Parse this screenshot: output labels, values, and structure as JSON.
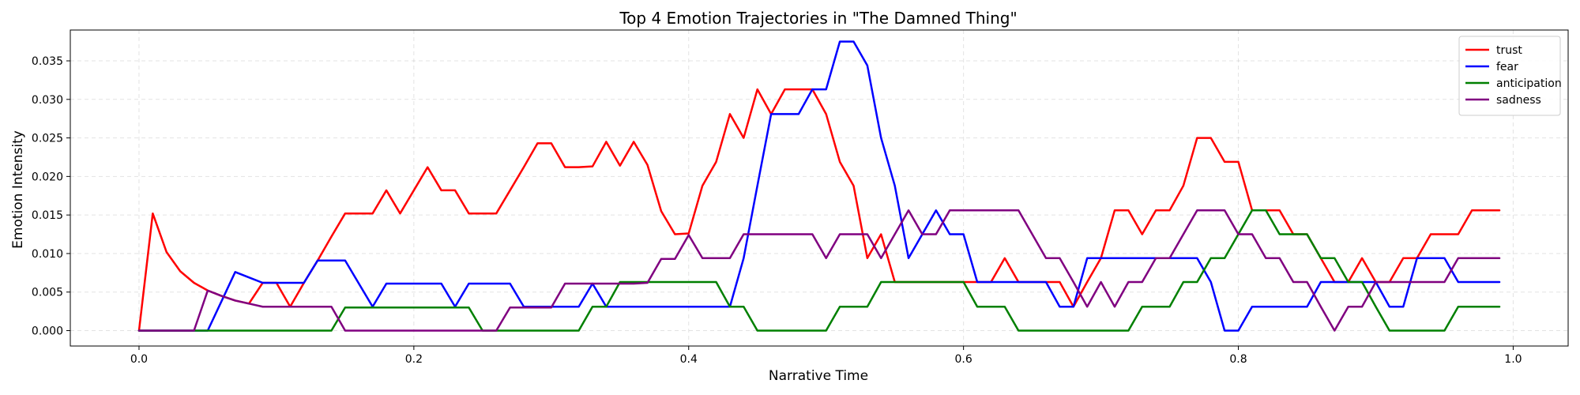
{
  "chart_data": {
    "type": "line",
    "title": "Top 4 Emotion Trajectories in \"The Damned Thing\"",
    "xlabel": "Narrative Time",
    "ylabel": "Emotion Intensity",
    "xlim": [
      -0.05,
      1.04
    ],
    "ylim": [
      -0.002,
      0.039
    ],
    "xticks": [
      0.0,
      0.2,
      0.4,
      0.6,
      0.8,
      1.0
    ],
    "xtick_labels": [
      "0.0",
      "0.2",
      "0.4",
      "0.6",
      "0.8",
      "1.0"
    ],
    "yticks": [
      0.0,
      0.005,
      0.01,
      0.015,
      0.02,
      0.025,
      0.03,
      0.035
    ],
    "ytick_labels": [
      "0.000",
      "0.005",
      "0.010",
      "0.015",
      "0.020",
      "0.025",
      "0.030",
      "0.035"
    ],
    "grid": true,
    "legend_position": "top-right",
    "x": [
      0.0,
      0.01,
      0.02,
      0.03,
      0.04,
      0.05,
      0.06,
      0.07,
      0.08,
      0.09,
      0.1,
      0.11,
      0.12,
      0.13,
      0.14,
      0.15,
      0.16,
      0.17,
      0.18,
      0.19,
      0.2,
      0.21,
      0.22,
      0.23,
      0.24,
      0.25,
      0.26,
      0.27,
      0.28,
      0.29,
      0.3,
      0.31,
      0.32,
      0.33,
      0.34,
      0.35,
      0.36,
      0.37,
      0.38,
      0.39,
      0.4,
      0.41,
      0.42,
      0.43,
      0.44,
      0.45,
      0.46,
      0.47,
      0.48,
      0.49,
      0.5,
      0.51,
      0.52,
      0.53,
      0.54,
      0.55,
      0.56,
      0.57,
      0.58,
      0.59,
      0.6,
      0.61,
      0.62,
      0.63,
      0.64,
      0.65,
      0.66,
      0.67,
      0.68,
      0.69,
      0.7,
      0.71,
      0.72,
      0.73,
      0.74,
      0.75,
      0.76,
      0.77,
      0.78,
      0.79,
      0.8,
      0.81,
      0.82,
      0.83,
      0.84,
      0.85,
      0.86,
      0.87,
      0.88,
      0.89,
      0.9,
      0.91,
      0.92,
      0.93,
      0.94,
      0.95,
      0.96,
      0.97,
      0.98,
      0.99
    ],
    "series": [
      {
        "name": "trust",
        "color": "#ff0000",
        "values": [
          0.0,
          0.0152,
          0.0102,
          0.0077,
          0.0062,
          0.0052,
          0.0045,
          0.0039,
          0.0035,
          0.0062,
          0.0062,
          0.0031,
          0.0062,
          0.0091,
          0.0122,
          0.0152,
          0.0152,
          0.0152,
          0.0182,
          0.0152,
          0.0182,
          0.0212,
          0.0182,
          0.0182,
          0.0152,
          0.0152,
          0.0152,
          0.0182,
          0.0212,
          0.0243,
          0.0243,
          0.0212,
          0.0212,
          0.0213,
          0.0245,
          0.0214,
          0.0245,
          0.0215,
          0.0155,
          0.0125,
          0.0126,
          0.0188,
          0.0219,
          0.0281,
          0.025,
          0.0313,
          0.0281,
          0.0313,
          0.0313,
          0.0313,
          0.0281,
          0.0219,
          0.0188,
          0.0094,
          0.0125,
          0.0063,
          0.0063,
          0.0063,
          0.0063,
          0.0063,
          0.0063,
          0.0063,
          0.0063,
          0.0094,
          0.0063,
          0.0063,
          0.0063,
          0.0063,
          0.0031,
          0.0063,
          0.0094,
          0.0156,
          0.0156,
          0.0125,
          0.0156,
          0.0156,
          0.0188,
          0.025,
          0.025,
          0.0219,
          0.0219,
          0.0156,
          0.0156,
          0.0156,
          0.0125,
          0.0125,
          0.0094,
          0.0063,
          0.0063,
          0.0094,
          0.0063,
          0.0063,
          0.0094,
          0.0094,
          0.0125,
          0.0125,
          0.0125,
          0.0156,
          0.0156,
          0.0156
        ]
      },
      {
        "name": "fear",
        "color": "#0000ff",
        "values": [
          0.0,
          0.0,
          0.0,
          0.0,
          0.0,
          0.0,
          0.0038,
          0.0076,
          0.0069,
          0.0062,
          0.0062,
          0.0062,
          0.0062,
          0.0091,
          0.0091,
          0.0091,
          0.0061,
          0.0031,
          0.0061,
          0.0061,
          0.0061,
          0.0061,
          0.0061,
          0.0031,
          0.0061,
          0.0061,
          0.0061,
          0.0061,
          0.0031,
          0.0031,
          0.0031,
          0.0031,
          0.0031,
          0.0061,
          0.0031,
          0.0031,
          0.0031,
          0.0031,
          0.0031,
          0.0031,
          0.0031,
          0.0031,
          0.0031,
          0.0031,
          0.0094,
          0.0188,
          0.0281,
          0.0281,
          0.0281,
          0.0313,
          0.0313,
          0.0375,
          0.0375,
          0.0344,
          0.025,
          0.0188,
          0.0094,
          0.0125,
          0.0156,
          0.0125,
          0.0125,
          0.0063,
          0.0063,
          0.0063,
          0.0063,
          0.0063,
          0.0063,
          0.0031,
          0.0031,
          0.0094,
          0.0094,
          0.0094,
          0.0094,
          0.0094,
          0.0094,
          0.0094,
          0.0094,
          0.0094,
          0.0063,
          0.0,
          0.0,
          0.0031,
          0.0031,
          0.0031,
          0.0031,
          0.0031,
          0.0063,
          0.0063,
          0.0063,
          0.0063,
          0.0063,
          0.0031,
          0.0031,
          0.0094,
          0.0094,
          0.0094,
          0.0063,
          0.0063,
          0.0063,
          0.0063
        ]
      },
      {
        "name": "anticipation",
        "color": "#008000",
        "values": [
          0.0,
          0.0,
          0.0,
          0.0,
          0.0,
          0.0,
          0.0,
          0.0,
          0.0,
          0.0,
          0.0,
          0.0,
          0.0,
          0.0,
          0.0,
          0.003,
          0.003,
          0.003,
          0.003,
          0.003,
          0.003,
          0.003,
          0.003,
          0.003,
          0.003,
          0.0,
          0.0,
          0.0,
          0.0,
          0.0,
          0.0,
          0.0,
          0.0,
          0.0031,
          0.0031,
          0.0063,
          0.0063,
          0.0063,
          0.0063,
          0.0063,
          0.0063,
          0.0063,
          0.0063,
          0.0031,
          0.0031,
          0.0,
          0.0,
          0.0,
          0.0,
          0.0,
          0.0,
          0.0031,
          0.0031,
          0.0031,
          0.0063,
          0.0063,
          0.0063,
          0.0063,
          0.0063,
          0.0063,
          0.0063,
          0.0031,
          0.0031,
          0.0031,
          0.0,
          0.0,
          0.0,
          0.0,
          0.0,
          0.0,
          0.0,
          0.0,
          0.0,
          0.0031,
          0.0031,
          0.0031,
          0.0063,
          0.0063,
          0.0094,
          0.0094,
          0.0125,
          0.0156,
          0.0156,
          0.0125,
          0.0125,
          0.0125,
          0.0094,
          0.0094,
          0.0063,
          0.0063,
          0.0031,
          0.0,
          0.0,
          0.0,
          0.0,
          0.0,
          0.0031,
          0.0031,
          0.0031,
          0.0031
        ]
      },
      {
        "name": "sadness",
        "color": "#800080",
        "values": [
          0.0,
          0.0,
          0.0,
          0.0,
          0.0,
          0.0052,
          0.0045,
          0.0039,
          0.0035,
          0.0031,
          0.0031,
          0.0031,
          0.0031,
          0.0031,
          0.0031,
          0.0,
          0.0,
          0.0,
          0.0,
          0.0,
          0.0,
          0.0,
          0.0,
          0.0,
          0.0,
          0.0,
          0.0,
          0.003,
          0.003,
          0.003,
          0.003,
          0.0061,
          0.0061,
          0.0061,
          0.0061,
          0.0061,
          0.0061,
          0.0062,
          0.0093,
          0.0093,
          0.0124,
          0.0094,
          0.0094,
          0.0094,
          0.0125,
          0.0125,
          0.0125,
          0.0125,
          0.0125,
          0.0125,
          0.0094,
          0.0125,
          0.0125,
          0.0125,
          0.0094,
          0.0125,
          0.0156,
          0.0125,
          0.0125,
          0.0156,
          0.0156,
          0.0156,
          0.0156,
          0.0156,
          0.0156,
          0.0125,
          0.0094,
          0.0094,
          0.0063,
          0.0031,
          0.0063,
          0.0031,
          0.0063,
          0.0063,
          0.0094,
          0.0094,
          0.0125,
          0.0156,
          0.0156,
          0.0156,
          0.0125,
          0.0125,
          0.0094,
          0.0094,
          0.0063,
          0.0063,
          0.0031,
          0.0,
          0.0031,
          0.0031,
          0.0063,
          0.0063,
          0.0063,
          0.0063,
          0.0063,
          0.0063,
          0.0094,
          0.0094,
          0.0094,
          0.0094
        ]
      }
    ]
  }
}
